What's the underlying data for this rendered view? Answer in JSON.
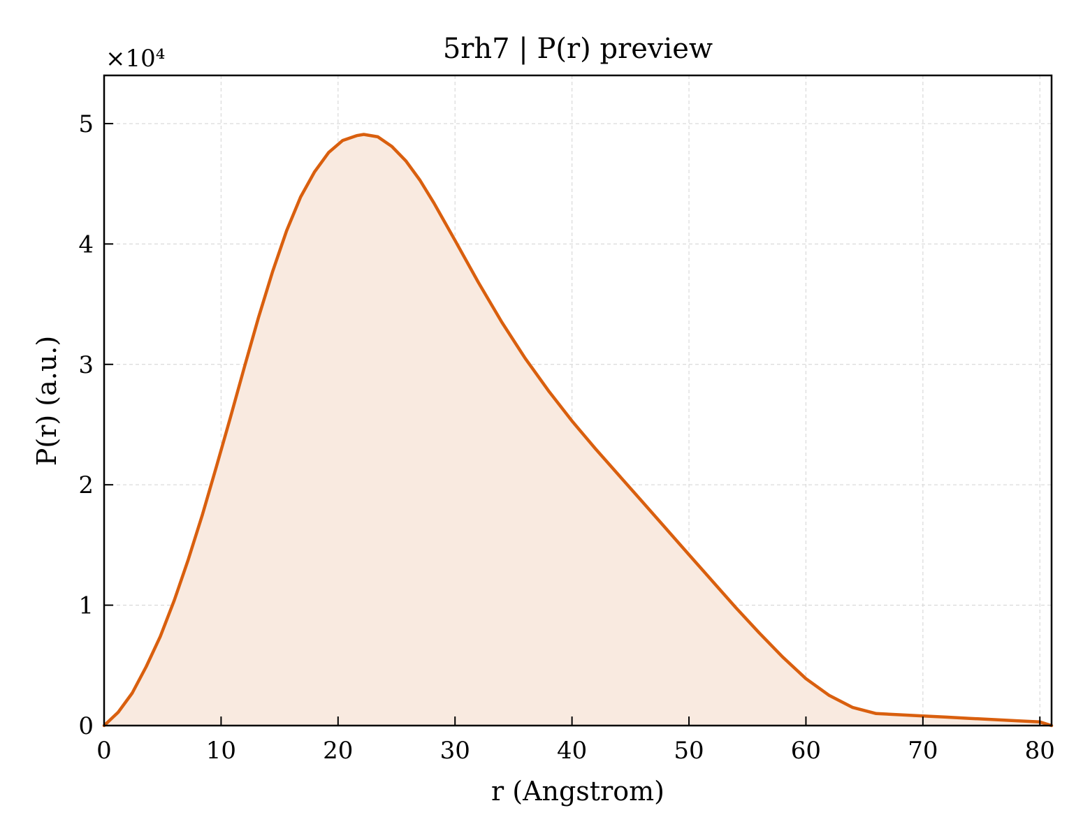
{
  "chart_data": {
    "type": "area",
    "title": "5rh7 | P(r) preview",
    "xlabel": "r (Angstrom)",
    "ylabel": "P(r) (a.u.)",
    "y_multiplier": "×10⁴",
    "xlim": [
      0,
      81
    ],
    "ylim": [
      0,
      54000
    ],
    "xticks": [
      0,
      10,
      20,
      30,
      40,
      50,
      60,
      70,
      80
    ],
    "xtick_labels": [
      "0",
      "10",
      "20",
      "30",
      "40",
      "50",
      "60",
      "70",
      "80"
    ],
    "yticks": [
      0,
      10000,
      20000,
      30000,
      40000,
      50000
    ],
    "ytick_labels": [
      "0",
      "1",
      "2",
      "3",
      "4",
      "5"
    ],
    "grid": true,
    "series": [
      {
        "color": "#d95f0e",
        "fill": "#f9eae0",
        "x": [
          0,
          1.2,
          2.4,
          3.6,
          4.8,
          6.0,
          7.2,
          8.4,
          9.6,
          10.8,
          12.0,
          13.2,
          14.4,
          15.6,
          16.8,
          18.0,
          19.2,
          20.4,
          21.6,
          22.2,
          23.4,
          24.6,
          25.8,
          27.0,
          28.2,
          30.0,
          32.0,
          34.0,
          36.0,
          38.0,
          40.0,
          42.0,
          44.0,
          46.0,
          48.0,
          50.0,
          52.0,
          54.0,
          56.0,
          58.0,
          60.0,
          62.0,
          64.0,
          66.0,
          68.0,
          70.0,
          72.0,
          74.0,
          76.0,
          78.0,
          80.0,
          81.0
        ],
        "y": [
          0,
          1100,
          2700,
          4900,
          7400,
          10400,
          13800,
          17500,
          21500,
          25600,
          29800,
          33900,
          37700,
          41100,
          43900,
          46000,
          47600,
          48600,
          49000,
          49100,
          48900,
          48100,
          46900,
          45300,
          43400,
          40300,
          36800,
          33500,
          30500,
          27800,
          25300,
          23000,
          20800,
          18600,
          16400,
          14200,
          12000,
          9800,
          7700,
          5700,
          3900,
          2500,
          1500,
          1000,
          900,
          800,
          700,
          600,
          500,
          400,
          300,
          0
        ]
      }
    ]
  }
}
